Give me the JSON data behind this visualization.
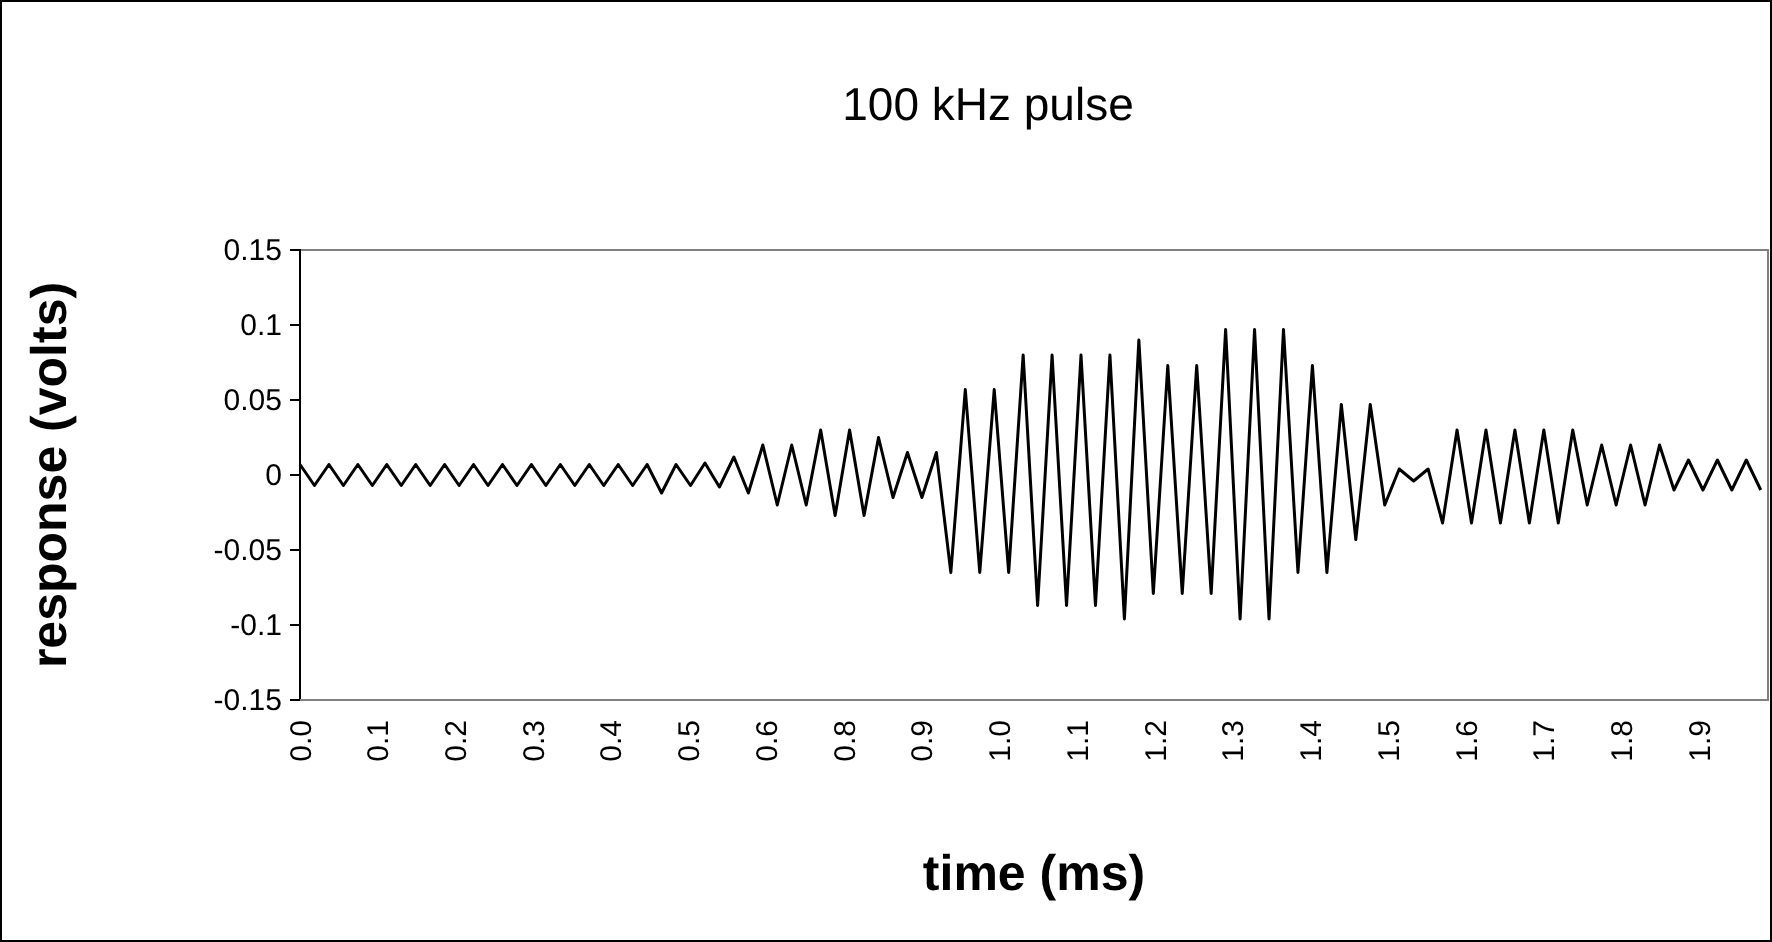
{
  "chart_data": {
    "type": "line",
    "title": "100 kHz pulse",
    "xlabel": "time (ms)",
    "ylabel": "response (volts)",
    "xlim": [
      0,
      2.03
    ],
    "ylim": [
      -0.15,
      0.15
    ],
    "xticks": [
      {
        "value": 0,
        "label": "0.0"
      },
      {
        "value": 0.1075,
        "label": "0.1"
      },
      {
        "value": 0.215,
        "label": "0.2"
      },
      {
        "value": 0.3225,
        "label": "0.3"
      },
      {
        "value": 0.43,
        "label": "0.4"
      },
      {
        "value": 0.5375,
        "label": "0.5"
      },
      {
        "value": 0.645,
        "label": "0.6"
      },
      {
        "value": 0.7525,
        "label": "0.8"
      },
      {
        "value": 0.86,
        "label": "0.9"
      },
      {
        "value": 0.9675,
        "label": "1.0"
      },
      {
        "value": 1.075,
        "label": "1.1"
      },
      {
        "value": 1.1825,
        "label": "1.2"
      },
      {
        "value": 1.29,
        "label": "1.3"
      },
      {
        "value": 1.3975,
        "label": "1.4"
      },
      {
        "value": 1.505,
        "label": "1.5"
      },
      {
        "value": 1.6125,
        "label": "1.6"
      },
      {
        "value": 1.72,
        "label": "1.7"
      },
      {
        "value": 1.8275,
        "label": "1.8"
      },
      {
        "value": 1.935,
        "label": "1.9"
      }
    ],
    "yticks": [
      0.15,
      0.1,
      0.05,
      0,
      -0.05,
      -0.1,
      -0.15
    ],
    "grid": false,
    "marker": "none",
    "line_style": "solid",
    "x": [
      0,
      0.02,
      0.04,
      0.06,
      0.08,
      0.1,
      0.12,
      0.14,
      0.16,
      0.18,
      0.2,
      0.22,
      0.24,
      0.26,
      0.28,
      0.3,
      0.32,
      0.34,
      0.36,
      0.38,
      0.4,
      0.42,
      0.44,
      0.46,
      0.48,
      0.5,
      0.52,
      0.54,
      0.56,
      0.58,
      0.6,
      0.62,
      0.64,
      0.66,
      0.68,
      0.7,
      0.72,
      0.74,
      0.76,
      0.78,
      0.8,
      0.82,
      0.84,
      0.86,
      0.88,
      0.9,
      0.92,
      0.94,
      0.96,
      0.98,
      1,
      1.02,
      1.04,
      1.06,
      1.08,
      1.1,
      1.12,
      1.14,
      1.16,
      1.18,
      1.2,
      1.22,
      1.24,
      1.26,
      1.28,
      1.3,
      1.32,
      1.34,
      1.36,
      1.38,
      1.4,
      1.42,
      1.44,
      1.46,
      1.48,
      1.5,
      1.52,
      1.54,
      1.56,
      1.58,
      1.6,
      1.62,
      1.64,
      1.66,
      1.68,
      1.7,
      1.72,
      1.74,
      1.76,
      1.78,
      1.8,
      1.82,
      1.84,
      1.86,
      1.88,
      1.9,
      1.92,
      1.94,
      1.96,
      1.98,
      2,
      2.02
    ],
    "series": [
      {
        "color": "#000000",
        "values": [
          0.007,
          -0.007,
          0.007,
          -0.007,
          0.007,
          -0.007,
          0.007,
          -0.007,
          0.007,
          -0.007,
          0.007,
          -0.007,
          0.007,
          -0.007,
          0.007,
          -0.007,
          0.007,
          -0.007,
          0.007,
          -0.007,
          0.007,
          -0.007,
          0.007,
          -0.007,
          0.007,
          -0.012,
          0.007,
          -0.007,
          0.008,
          -0.008,
          0.012,
          -0.012,
          0.02,
          -0.02,
          0.02,
          -0.02,
          0.03,
          -0.027,
          0.03,
          -0.027,
          0.025,
          -0.015,
          0.015,
          -0.015,
          0.015,
          -0.065,
          0.057,
          -0.065,
          0.057,
          -0.065,
          0.08,
          -0.087,
          0.08,
          -0.087,
          0.08,
          -0.087,
          0.08,
          -0.096,
          0.09,
          -0.079,
          0.073,
          -0.079,
          0.073,
          -0.079,
          0.097,
          -0.096,
          0.097,
          -0.096,
          0.097,
          -0.065,
          0.073,
          -0.065,
          0.047,
          -0.043,
          0.047,
          -0.02,
          0.004,
          -0.004,
          0.004,
          -0.032,
          0.03,
          -0.032,
          0.03,
          -0.032,
          0.03,
          -0.032,
          0.03,
          -0.032,
          0.03,
          -0.02,
          0.02,
          -0.02,
          0.02,
          -0.02,
          0.02,
          -0.01,
          0.01,
          -0.01,
          0.01,
          -0.01,
          0.01,
          -0.01
        ]
      }
    ]
  }
}
